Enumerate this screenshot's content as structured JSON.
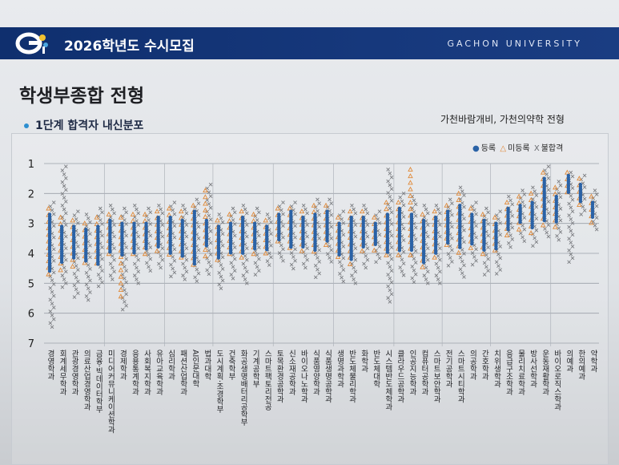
{
  "header": {
    "title": "2026학년도 수시모집",
    "university": "GACHON UNIVERSITY"
  },
  "page_title": "학생부종합 전형",
  "subtitle": "1단계 합격자 내신분포",
  "right_note": "가천바람개비, 가천의약학 전형",
  "colors": {
    "header": "#16387c",
    "registered": "#2a62a6",
    "not_registered": "#e08a3a",
    "rejected": "#7a7c80"
  },
  "chart_data": {
    "type": "scatter",
    "title": "",
    "xlabel": "",
    "ylabel": "",
    "ylim": [
      1,
      7
    ],
    "y_ticks": [
      "1",
      "2",
      "3",
      "4",
      "5",
      "6",
      "7"
    ],
    "grid": true,
    "invert_y": true,
    "legend": {
      "placement": "top-right",
      "entries": [
        {
          "marker": "●",
          "label": "등록"
        },
        {
          "marker": "△",
          "label": "미등록"
        },
        {
          "marker": "X",
          "label": "불합격"
        }
      ]
    },
    "categories": [
      "경영학과",
      "회계세무학과",
      "관광경영학과",
      "의료산업경영학과",
      "금융·빅데이터학부",
      "미디어커뮤니케이션학과",
      "경제학과",
      "응용통계학과",
      "사회복지학과",
      "유아교육학과",
      "심리학과",
      "패션산업학과",
      "AI인문대학",
      "법과대학",
      "도시계획·조경학부",
      "건축학부",
      "화공생명배터리공학부",
      "기계공학부",
      "스마트팩토리전공",
      "토목환경공학과",
      "신소재공학과",
      "바이오나노학과",
      "식품영양학과",
      "식품생명공학과",
      "생명과학과",
      "반도체물리학과",
      "화학과",
      "반도체대학",
      "시스템반도체학과",
      "클라우드공학과",
      "인공지능학과",
      "컴퓨터공학과",
      "스마트보안학과",
      "전기공학과",
      "스마트시티학과",
      "의공학과",
      "간호학과",
      "치위생학과",
      "응급구조학과",
      "물리치료학과",
      "방사선학과",
      "운동재활학과",
      "바이오로직스학과",
      "의예과",
      "한의예과",
      "약학과"
    ],
    "series": [
      {
        "name": "등록",
        "values": [
          [
            2.7,
            4.6
          ],
          [
            3.1,
            4.3
          ],
          [
            3.1,
            4.2
          ],
          [
            3.2,
            4.3
          ],
          [
            3.1,
            4.4
          ],
          [
            2.9,
            4.0
          ],
          [
            3.0,
            4.1
          ],
          [
            3.0,
            4.0
          ],
          [
            3.0,
            3.9
          ],
          [
            2.8,
            3.8
          ],
          [
            2.8,
            4.0
          ],
          [
            2.9,
            4.1
          ],
          [
            2.6,
            4.4
          ],
          [
            2.9,
            3.8
          ],
          [
            3.1,
            4.2
          ],
          [
            3.0,
            4.0
          ],
          [
            2.8,
            4.0
          ],
          [
            3.0,
            3.9
          ],
          [
            3.1,
            3.9
          ],
          [
            2.7,
            3.6
          ],
          [
            2.6,
            3.8
          ],
          [
            2.8,
            3.8
          ],
          [
            2.7,
            3.9
          ],
          [
            2.6,
            3.6
          ],
          [
            3.0,
            4.1
          ],
          [
            2.8,
            4.2
          ],
          [
            2.8,
            3.8
          ],
          [
            3.0,
            3.7
          ],
          [
            2.7,
            4.0
          ],
          [
            2.5,
            3.9
          ],
          [
            2.7,
            3.9
          ],
          [
            2.9,
            4.3
          ],
          [
            2.8,
            4.0
          ],
          [
            2.6,
            3.7
          ],
          [
            2.4,
            3.8
          ],
          [
            2.7,
            3.7
          ],
          [
            2.9,
            3.9
          ],
          [
            3.0,
            3.9
          ],
          [
            2.5,
            3.2
          ],
          [
            2.4,
            3.0
          ],
          [
            2.3,
            3.2
          ],
          [
            1.5,
            2.9
          ],
          [
            2.1,
            3.0
          ],
          [
            1.4,
            2.0
          ],
          [
            1.7,
            2.3
          ],
          [
            2.3,
            2.8
          ]
        ]
      },
      {
        "name": "미등록",
        "values": [
          [
            2.5,
            4.9
          ],
          [
            2.8,
            4.6
          ],
          [
            2.9,
            4.5
          ],
          [
            3.0,
            4.5
          ],
          [
            2.8,
            4.5
          ],
          [
            2.7,
            4.2
          ],
          [
            2.8,
            5.6
          ],
          [
            2.7,
            4.2
          ],
          [
            2.7,
            4.1
          ],
          [
            2.6,
            4.0
          ],
          [
            2.5,
            4.2
          ],
          [
            2.6,
            4.3
          ],
          [
            2.4,
            4.5
          ],
          [
            1.9,
            4.1
          ],
          [
            2.9,
            4.4
          ],
          [
            2.7,
            4.2
          ],
          [
            2.6,
            4.2
          ],
          [
            2.7,
            4.1
          ],
          [
            2.9,
            4.0
          ],
          [
            2.5,
            3.8
          ],
          [
            2.5,
            4.0
          ],
          [
            2.6,
            4.0
          ],
          [
            2.4,
            4.0
          ],
          [
            2.4,
            3.8
          ],
          [
            2.8,
            4.3
          ],
          [
            2.6,
            4.4
          ],
          [
            2.6,
            4.0
          ],
          [
            2.8,
            3.9
          ],
          [
            2.3,
            4.2
          ],
          [
            2.3,
            4.1
          ],
          [
            1.2,
            4.1
          ],
          [
            2.7,
            4.5
          ],
          [
            2.6,
            4.2
          ],
          [
            2.4,
            3.9
          ],
          [
            2.0,
            4.0
          ],
          [
            2.5,
            3.9
          ],
          [
            2.7,
            4.1
          ],
          [
            2.8,
            4.0
          ],
          [
            2.3,
            3.4
          ],
          [
            2.1,
            3.2
          ],
          [
            2.0,
            3.4
          ],
          [
            1.3,
            3.1
          ],
          [
            1.8,
            3.2
          ],
          [
            1.3,
            2.1
          ],
          [
            1.5,
            2.5
          ],
          [
            2.1,
            3.0
          ]
        ]
      },
      {
        "name": "불합격",
        "values": [
          [
            2.3,
            6.5
          ],
          [
            1.1,
            5.2
          ],
          [
            2.6,
            5.5
          ],
          [
            2.7,
            5.6
          ],
          [
            2.5,
            5.2
          ],
          [
            2.4,
            4.9
          ],
          [
            2.5,
            5.9
          ],
          [
            2.4,
            5.0
          ],
          [
            2.5,
            4.7
          ],
          [
            2.4,
            4.6
          ],
          [
            2.3,
            4.8
          ],
          [
            2.4,
            4.9
          ],
          [
            2.2,
            5.0
          ],
          [
            1.7,
            4.7
          ],
          [
            2.7,
            5.2
          ],
          [
            2.5,
            4.9
          ],
          [
            2.4,
            5.0
          ],
          [
            2.5,
            4.8
          ],
          [
            2.7,
            4.5
          ],
          [
            2.3,
            4.3
          ],
          [
            2.3,
            4.6
          ],
          [
            2.4,
            4.6
          ],
          [
            2.2,
            4.8
          ],
          [
            2.2,
            4.4
          ],
          [
            2.6,
            5.0
          ],
          [
            2.4,
            5.0
          ],
          [
            2.4,
            4.5
          ],
          [
            2.6,
            4.3
          ],
          [
            1.2,
            5.7
          ],
          [
            2.0,
            4.8
          ],
          [
            2.1,
            5.0
          ],
          [
            2.4,
            5.0
          ],
          [
            2.4,
            5.1
          ],
          [
            2.2,
            4.5
          ],
          [
            1.8,
            4.9
          ],
          [
            2.3,
            4.4
          ],
          [
            2.5,
            4.8
          ],
          [
            2.6,
            4.7
          ],
          [
            2.1,
            3.8
          ],
          [
            1.9,
            3.6
          ],
          [
            1.8,
            3.8
          ],
          [
            1.1,
            3.5
          ],
          [
            1.6,
            3.6
          ],
          [
            1.3,
            4.3
          ],
          [
            1.4,
            2.8
          ],
          [
            1.9,
            3.3
          ]
        ]
      }
    ]
  }
}
